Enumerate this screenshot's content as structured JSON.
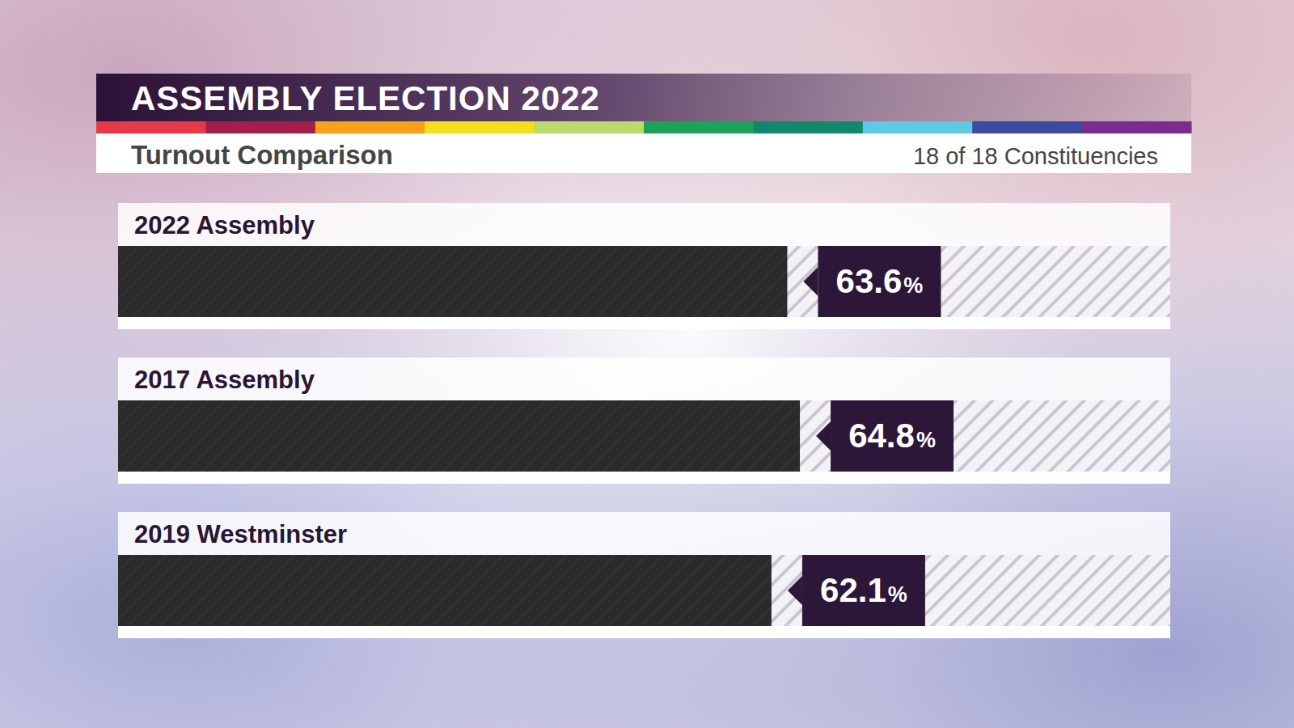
{
  "chart_data": {
    "type": "bar",
    "orientation": "horizontal",
    "title": "ASSEMBLY ELECTION 2022",
    "subtitle": "Turnout Comparison",
    "annotations": [
      "18 of 18 Constituencies"
    ],
    "categories": [
      "2022 Assembly",
      "2017 Assembly",
      "2019 Westminster"
    ],
    "values": [
      63.6,
      64.8,
      62.1
    ],
    "value_labels": [
      "63.6%",
      "64.8%",
      "62.1%"
    ],
    "color": "#2b2b2b",
    "xlim": [
      0,
      100
    ],
    "tick_labels": "y",
    "grid": false,
    "data_labels": true
  }
}
